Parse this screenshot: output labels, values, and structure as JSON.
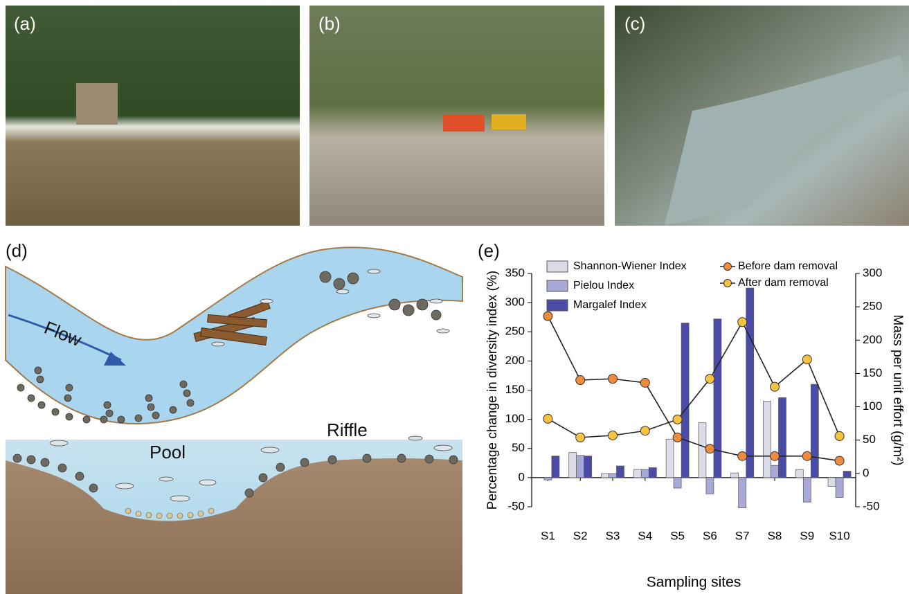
{
  "panels": [
    {
      "label": "(a)"
    },
    {
      "label": "(b)"
    },
    {
      "label": "(c)"
    },
    {
      "label": "(d)"
    },
    {
      "label": "(e)"
    }
  ],
  "diagram": {
    "flow": "Flow",
    "pool": "Pool",
    "riffle": "Riffle"
  },
  "chart_data": {
    "type": "bar",
    "x_label": "Sampling sites",
    "y_label": "Percentage change in diversity index (%)",
    "y2_label": "Mass per unit effort (g/m²)",
    "categories": [
      "S1",
      "S2",
      "S3",
      "S4",
      "S5",
      "S6",
      "S7",
      "S8",
      "S9",
      "S10"
    ],
    "ylim": [
      -50,
      350
    ],
    "yticks": [
      -50,
      0,
      50,
      100,
      150,
      200,
      250,
      300,
      350
    ],
    "y2lim": [
      -50,
      300
    ],
    "y2ticks": [
      -50,
      0,
      50,
      100,
      150,
      200,
      250,
      300
    ],
    "series": [
      {
        "name": "Shannon-Wiener Index",
        "type": "bar",
        "color": "#dcdce9",
        "values": [
          0,
          43,
          7,
          14,
          66,
          94,
          8,
          131,
          14,
          -15
        ]
      },
      {
        "name": "Pielou Index",
        "type": "bar",
        "color": "#a9a9d8",
        "values": [
          -4,
          38,
          7,
          14,
          -18,
          -28,
          -52,
          21,
          -42,
          -34
        ]
      },
      {
        "name": "Margalef Index",
        "type": "bar",
        "color": "#4b4ba8",
        "values": [
          37,
          37,
          20,
          17,
          265,
          272,
          325,
          137,
          160,
          11
        ]
      },
      {
        "name": "Before dam removal",
        "type": "line",
        "axis": "y2",
        "color": "#f08a3c",
        "values": [
          236,
          140,
          142,
          136,
          54,
          37,
          26,
          26,
          26,
          19
        ]
      },
      {
        "name": "After dam removal",
        "type": "line",
        "axis": "y2",
        "color": "#f5c242",
        "values": [
          82,
          54,
          57,
          64,
          81,
          142,
          227,
          130,
          171,
          56
        ]
      }
    ]
  }
}
